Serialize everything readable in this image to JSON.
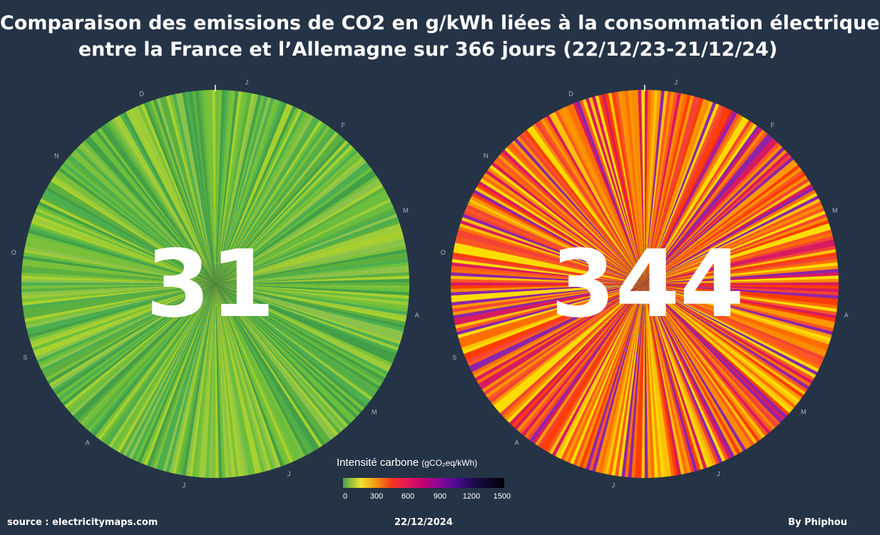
{
  "title_line1": "Comparaison des emissions de CO2 en g/kWh liées à la consommation électrique",
  "title_line2": "entre la France et l’Allemagne sur 366 jours (22/12/23-21/12/24)",
  "chart_data": [
    {
      "type": "radial",
      "country": "France",
      "value": "31",
      "months": [
        "J",
        "F",
        "M",
        "A",
        "M",
        "J",
        "J",
        "A",
        "S",
        "O",
        "N",
        "D"
      ],
      "palette": [
        "#43a047",
        "#4caf50",
        "#5cb040",
        "#6bbf3c",
        "#7cc13a",
        "#8bc34a",
        "#9ccc3a",
        "#a8d12f"
      ]
    },
    {
      "type": "radial",
      "country": "Allemagne",
      "value": "344",
      "months": [
        "J",
        "F",
        "M",
        "A",
        "M",
        "J",
        "J",
        "A",
        "S",
        "O",
        "N",
        "D"
      ],
      "palette": [
        "#ffdd00",
        "#ffc107",
        "#ff9800",
        "#ff5722",
        "#f44336",
        "#ff3d00",
        "#d81b60",
        "#8e24aa",
        "#fb8c00",
        "#ff6f00"
      ]
    }
  ],
  "legend": {
    "title": "Intensité carbone",
    "unit": "(gCO₂eq/kWh)",
    "ticks": [
      "0",
      "300",
      "600",
      "900",
      "1200",
      "1500"
    ]
  },
  "footer": {
    "source": "source : electricitymaps.com",
    "date": "22/12/2024",
    "author": "By Phiphou"
  }
}
